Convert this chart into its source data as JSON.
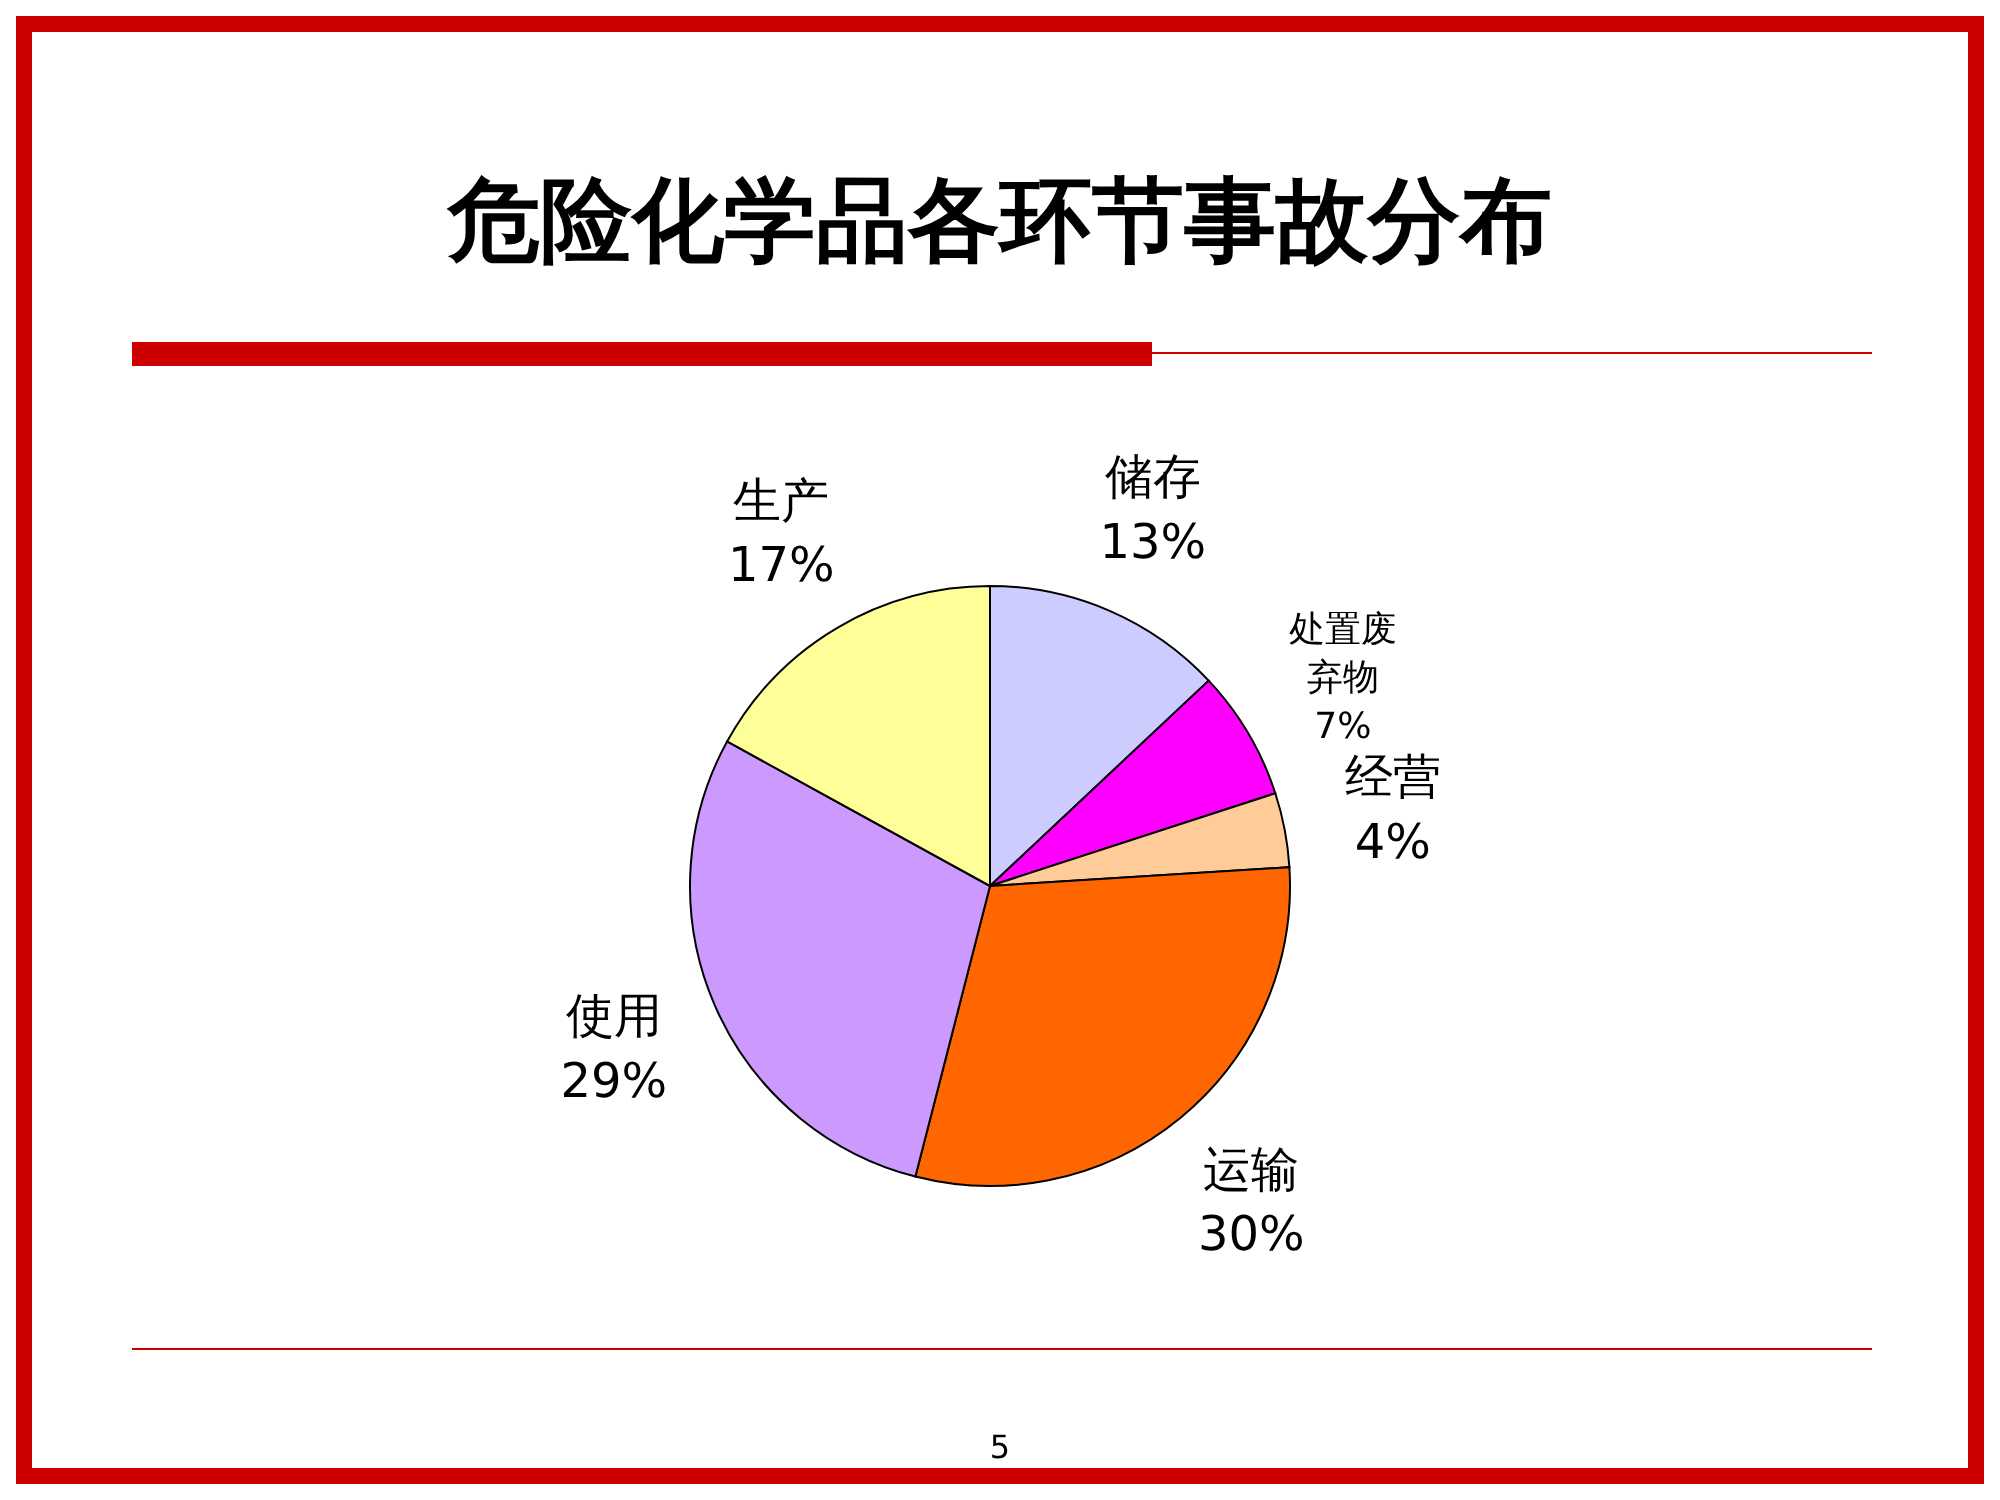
{
  "chart_data": {
    "type": "pie",
    "title": "危险化学品各环节事故分布",
    "categories": [
      "储存",
      "处置废弃物",
      "经营",
      "运输",
      "使用",
      "生产"
    ],
    "values": [
      13,
      7,
      4,
      30,
      29,
      17
    ],
    "value_labels": [
      "13%",
      "7%",
      "4%",
      "30%",
      "29%",
      "17%"
    ],
    "colors": [
      "#ccccff",
      "#ff00ff",
      "#ffcc99",
      "#ff6600",
      "#cc99ff",
      "#ffff99"
    ],
    "annotations": [
      "5"
    ]
  }
}
